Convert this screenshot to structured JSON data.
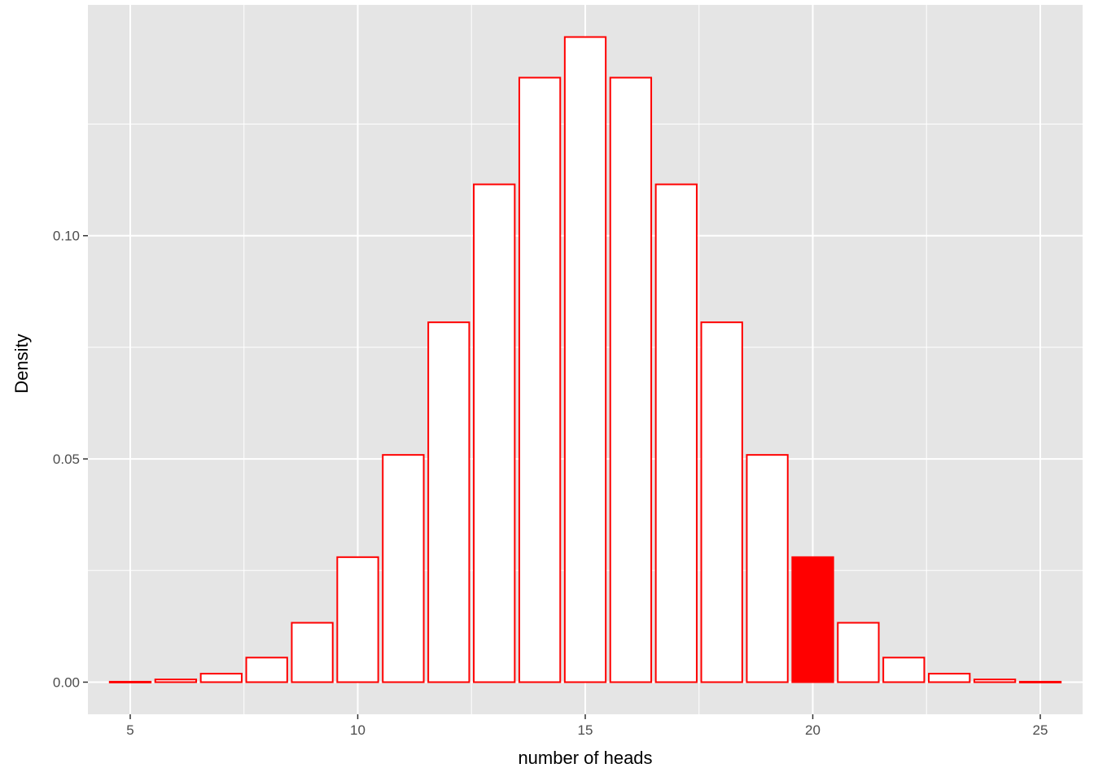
{
  "chart_data": {
    "type": "bar",
    "xlabel": "number of heads",
    "ylabel": "Density",
    "x": [
      5,
      6,
      7,
      8,
      9,
      10,
      11,
      12,
      13,
      14,
      15,
      16,
      17,
      18,
      19,
      20,
      21,
      22,
      23,
      24,
      25
    ],
    "values": [
      0.0001,
      0.0006,
      0.0019,
      0.0055,
      0.0133,
      0.028,
      0.0509,
      0.0806,
      0.1115,
      0.1354,
      0.1445,
      0.1354,
      0.1115,
      0.0806,
      0.0509,
      0.028,
      0.0133,
      0.0055,
      0.0019,
      0.0006,
      0.0001
    ],
    "highlighted_x": [
      20
    ],
    "x_ticks": [
      5,
      10,
      15,
      20,
      25
    ],
    "x_tick_labels": [
      "5",
      "10",
      "15",
      "20",
      "25"
    ],
    "y_ticks": [
      0,
      0.05,
      0.1
    ],
    "y_tick_labels": [
      "0.00",
      "0.05",
      "0.10"
    ],
    "xlim": [
      4.07,
      25.93
    ],
    "ylim": [
      -0.0072,
      0.1517
    ],
    "grid": true,
    "colors": {
      "panel_background": "#e5e5e5",
      "grid_line": "#ffffff",
      "bar_outline": "#ff0000",
      "bar_fill": "#ffffff",
      "highlight_fill": "#ff0000"
    }
  }
}
